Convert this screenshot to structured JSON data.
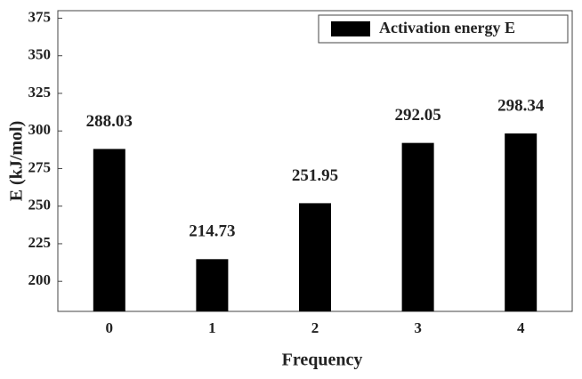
{
  "chart_data": {
    "type": "bar",
    "x_label": "Frequency",
    "y_label": "E (kJ/mol)",
    "categories": [
      "0",
      "1",
      "2",
      "3",
      "4"
    ],
    "series": [
      {
        "name": "Activation energy E",
        "color": "#000000",
        "values": [
          288.03,
          214.73,
          251.95,
          292.05,
          298.34
        ]
      }
    ],
    "ylim": [
      180,
      380
    ],
    "yticks": [
      200,
      225,
      250,
      275,
      300,
      325,
      350,
      375
    ],
    "legend": "upper right",
    "value_labels_shown": true
  }
}
